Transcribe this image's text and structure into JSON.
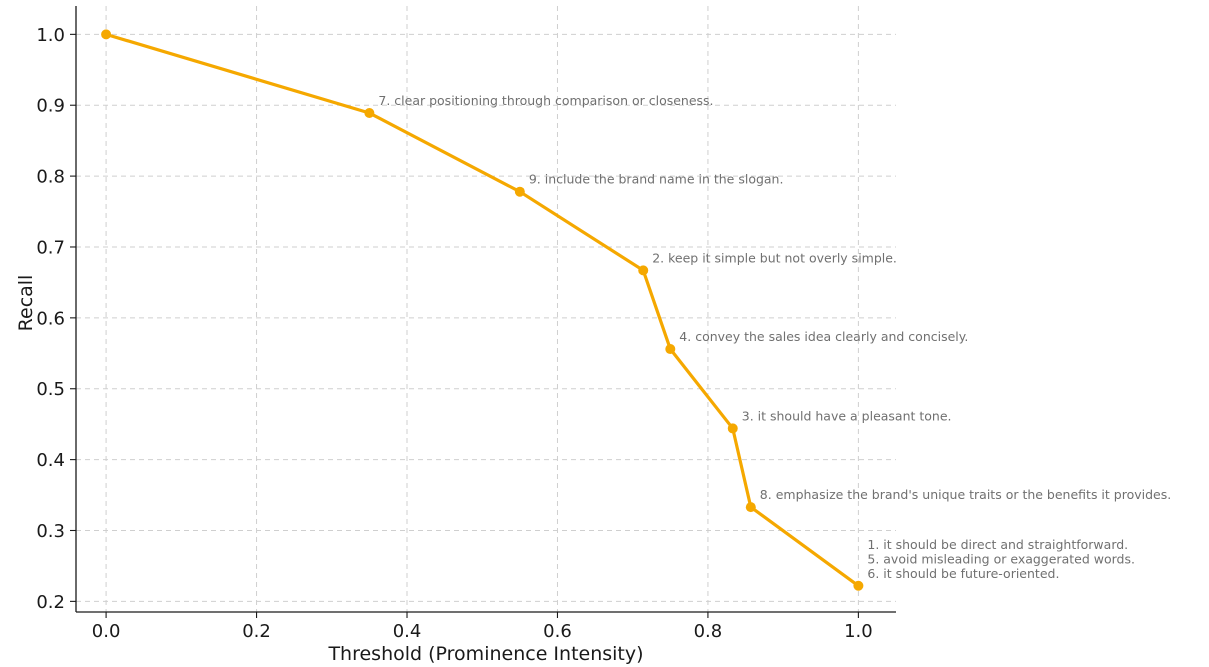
{
  "chart_data": {
    "type": "line",
    "title": "",
    "xlabel": "Threshold (Prominence Intensity)",
    "ylabel": "Recall",
    "xlim": [
      -0.04,
      1.05
    ],
    "ylim": [
      0.185,
      1.04
    ],
    "grid": true,
    "x_ticks": [
      "0.0",
      "0.2",
      "0.4",
      "0.6",
      "0.8",
      "1.0"
    ],
    "y_ticks": [
      "0.2",
      "0.3",
      "0.4",
      "0.5",
      "0.6",
      "0.7",
      "0.8",
      "0.9",
      "1.0"
    ],
    "color": "#f5a800",
    "series": [
      {
        "x": [
          0.0,
          0.35,
          0.55,
          0.714,
          0.75,
          0.833,
          0.857,
          1.0
        ],
        "y": [
          1.0,
          0.889,
          0.778,
          0.667,
          0.556,
          0.444,
          0.333,
          0.222
        ]
      }
    ],
    "annotations": [
      {
        "x": 0.35,
        "y": 0.889,
        "lines": [
          "7. clear positioning through comparison or closeness."
        ]
      },
      {
        "x": 0.55,
        "y": 0.778,
        "lines": [
          "9. include the brand name in the slogan."
        ]
      },
      {
        "x": 0.714,
        "y": 0.667,
        "lines": [
          "2. keep it simple but not overly simple."
        ]
      },
      {
        "x": 0.75,
        "y": 0.556,
        "lines": [
          "4. convey the sales idea clearly and concisely."
        ]
      },
      {
        "x": 0.833,
        "y": 0.444,
        "lines": [
          "3. it should have a pleasant tone."
        ]
      },
      {
        "x": 0.857,
        "y": 0.333,
        "lines": [
          "8. emphasize the brand's unique traits or the benefits it provides."
        ]
      },
      {
        "x": 1.0,
        "y": 0.222,
        "lines": [
          "1. it should be direct and straightforward.",
          "5. avoid misleading or exaggerated words.",
          "6. it should be future-oriented."
        ]
      }
    ]
  }
}
